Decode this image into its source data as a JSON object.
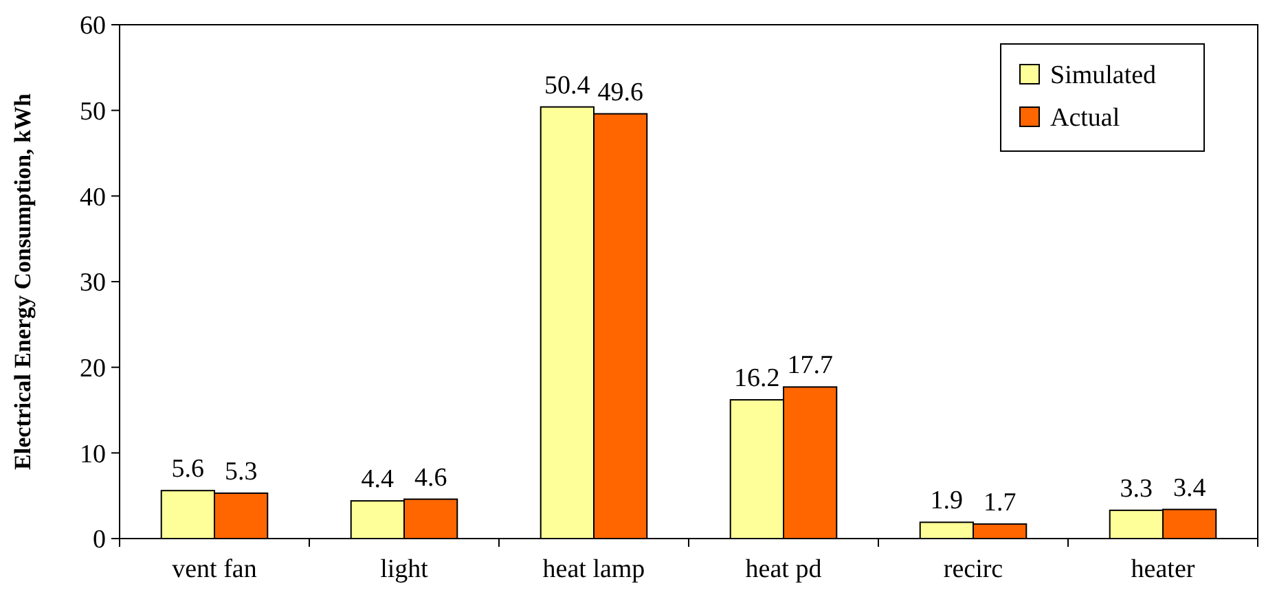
{
  "chart_data": {
    "type": "bar",
    "ylabel": "Electrical Energy Consumption, kWh",
    "categories": [
      "vent fan",
      "light",
      "heat lamp",
      "heat pd",
      "recirc",
      "heater"
    ],
    "series": [
      {
        "name": "Simulated",
        "color": "#ffff99",
        "values": [
          5.6,
          4.4,
          50.4,
          16.2,
          1.9,
          3.3
        ]
      },
      {
        "name": "Actual",
        "color": "#ff6600",
        "values": [
          5.3,
          4.6,
          49.6,
          17.7,
          1.7,
          3.4
        ]
      }
    ],
    "ylim": [
      0,
      60
    ],
    "yticks": [
      0,
      10,
      20,
      30,
      40,
      50,
      60
    ],
    "data_labels": true,
    "legend": "top right",
    "grid": false
  }
}
